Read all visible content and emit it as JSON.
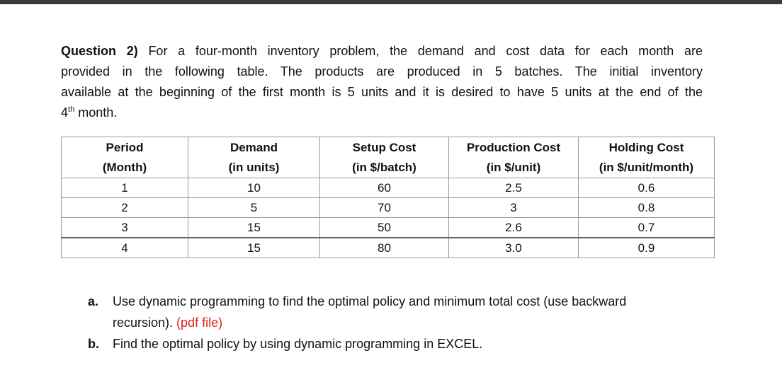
{
  "question": {
    "label": "Question 2)",
    "lines": [
      "For a four-month inventory problem, the demand and cost data for each month are",
      "provided in the following table. The products are produced in 5 batches. The initial inventory",
      "available at the beginning of the first month is 5 units and it is desired to have 5 units at the end of the"
    ],
    "last_number": "4",
    "last_superscript": "th",
    "last_text": " month."
  },
  "table": {
    "headers": [
      [
        "Period",
        "(Month)"
      ],
      [
        "Demand",
        "(in units)"
      ],
      [
        "Setup Cost",
        "(in $/batch)"
      ],
      [
        "Production Cost",
        "(in $/unit)"
      ],
      [
        "Holding Cost",
        "(in $/unit/month)"
      ]
    ],
    "rows": [
      [
        "1",
        "10",
        "60",
        "2.5",
        "0.6"
      ],
      [
        "2",
        "5",
        "70",
        "3",
        "0.8"
      ],
      [
        "3",
        "15",
        "50",
        "2.6",
        "0.7"
      ],
      [
        "4",
        "15",
        "80",
        "3.0",
        "0.9"
      ]
    ]
  },
  "tasks": [
    {
      "marker": "a.",
      "text": "Use dynamic programming to find the optimal policy and minimum total cost (use backward",
      "text2": "recursion).",
      "note": "(pdf file)"
    },
    {
      "marker": "b.",
      "text": "Find the optimal policy by using dynamic programming in EXCEL."
    }
  ]
}
